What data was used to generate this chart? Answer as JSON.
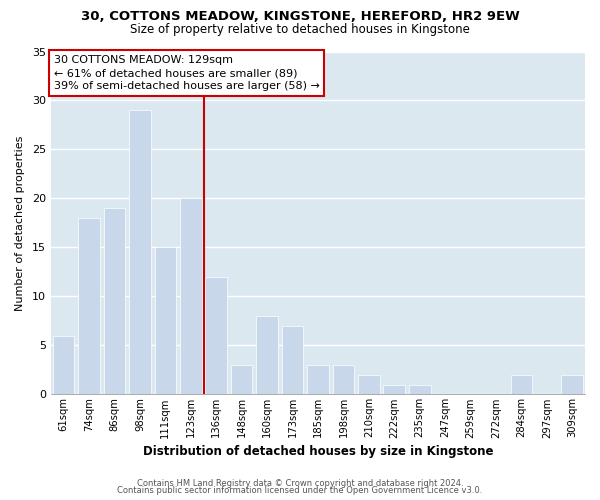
{
  "title": "30, COTTONS MEADOW, KINGSTONE, HEREFORD, HR2 9EW",
  "subtitle": "Size of property relative to detached houses in Kingstone",
  "xlabel": "Distribution of detached houses by size in Kingstone",
  "ylabel": "Number of detached properties",
  "bar_labels": [
    "61sqm",
    "74sqm",
    "86sqm",
    "98sqm",
    "111sqm",
    "123sqm",
    "136sqm",
    "148sqm",
    "160sqm",
    "173sqm",
    "185sqm",
    "198sqm",
    "210sqm",
    "222sqm",
    "235sqm",
    "247sqm",
    "259sqm",
    "272sqm",
    "284sqm",
    "297sqm",
    "309sqm"
  ],
  "bar_values": [
    6,
    18,
    19,
    29,
    15,
    20,
    12,
    3,
    8,
    7,
    3,
    3,
    2,
    1,
    1,
    0,
    0,
    0,
    2,
    0,
    2
  ],
  "bar_color": "#c8d8ea",
  "bar_edge_color": "#ffffff",
  "reference_line_x": 5.5,
  "ylim": [
    0,
    35
  ],
  "yticks": [
    0,
    5,
    10,
    15,
    20,
    25,
    30,
    35
  ],
  "annotation_title": "30 COTTONS MEADOW: 129sqm",
  "annotation_line1": "← 61% of detached houses are smaller (89)",
  "annotation_line2": "39% of semi-detached houses are larger (58) →",
  "annotation_box_color": "#ffffff",
  "annotation_box_edge": "#cc0000",
  "ref_line_color": "#cc0000",
  "plot_bg_color": "#dce8f0",
  "fig_bg_color": "#ffffff",
  "footer1": "Contains HM Land Registry data © Crown copyright and database right 2024.",
  "footer2": "Contains public sector information licensed under the Open Government Licence v3.0."
}
